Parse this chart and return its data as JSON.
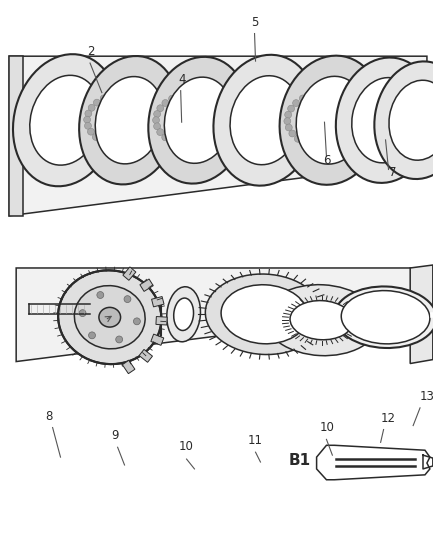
{
  "bg_color": "#ffffff",
  "line_color": "#2a2a2a",
  "label_fontsize": 8.5,
  "lw_thin": 0.7,
  "lw_med": 1.1,
  "lw_thick": 1.5
}
